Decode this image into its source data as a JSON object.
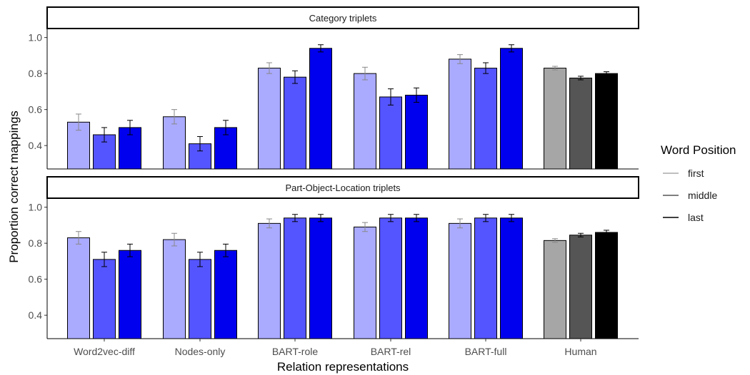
{
  "chart_data": {
    "type": "bar",
    "xlabel": "Relation representations",
    "ylabel": "Proportion correct mappings",
    "ylim": [
      0.27,
      1.05
    ],
    "yticks": [
      "0.4",
      "0.6",
      "0.8",
      "1.0"
    ],
    "categories": [
      "Word2vec-diff",
      "Nodes-only",
      "BART-role",
      "BART-rel",
      "BART-full",
      "Human"
    ],
    "legend": {
      "title": "Word Position",
      "position": "right",
      "entries": [
        "first",
        "middle",
        "last"
      ]
    },
    "colors": {
      "model": [
        "#aaaaff",
        "#5555ff",
        "#0000ee"
      ],
      "human": [
        "#a6a6a6",
        "#555555",
        "#000000"
      ],
      "legend": [
        "#aaaaaa",
        "#555555",
        "#000000"
      ]
    },
    "panels": [
      {
        "strip": "Category triplets",
        "series": [
          {
            "name": "first",
            "values": [
              0.53,
              0.56,
              0.83,
              0.8,
              0.88,
              0.83
            ],
            "errors": [
              0.045,
              0.04,
              0.03,
              0.035,
              0.025,
              0.01
            ]
          },
          {
            "name": "middle",
            "values": [
              0.46,
              0.41,
              0.78,
              0.67,
              0.83,
              0.775
            ],
            "errors": [
              0.04,
              0.04,
              0.035,
              0.045,
              0.03,
              0.01
            ]
          },
          {
            "name": "last",
            "values": [
              0.5,
              0.5,
              0.94,
              0.68,
              0.94,
              0.8
            ],
            "errors": [
              0.04,
              0.04,
              0.02,
              0.04,
              0.02,
              0.01
            ]
          }
        ]
      },
      {
        "strip": "Part-Object-Location triplets",
        "series": [
          {
            "name": "first",
            "values": [
              0.83,
              0.82,
              0.91,
              0.89,
              0.91,
              0.815
            ],
            "errors": [
              0.035,
              0.035,
              0.025,
              0.025,
              0.025,
              0.01
            ]
          },
          {
            "name": "middle",
            "values": [
              0.71,
              0.71,
              0.94,
              0.94,
              0.94,
              0.845
            ],
            "errors": [
              0.04,
              0.04,
              0.02,
              0.02,
              0.02,
              0.01
            ]
          },
          {
            "name": "last",
            "values": [
              0.76,
              0.76,
              0.94,
              0.94,
              0.94,
              0.86
            ],
            "errors": [
              0.035,
              0.035,
              0.02,
              0.02,
              0.02,
              0.012
            ]
          }
        ]
      }
    ]
  }
}
